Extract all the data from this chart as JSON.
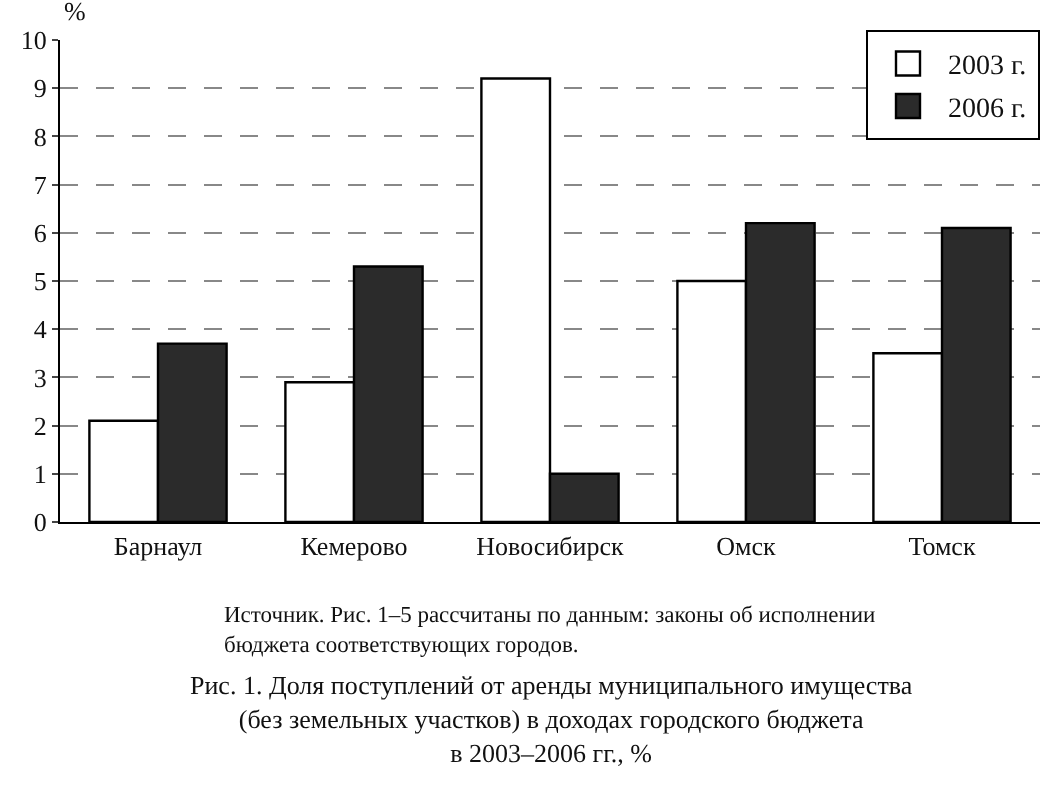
{
  "chart_data": {
    "type": "bar",
    "title": "Рис. 1. Доля поступлений от аренды муниципального имущества\n(без земельных участков) в доходах городского бюджета\nв 2003–2006 гг., %",
    "ylabel": "%",
    "categories": [
      "Барнаул",
      "Кемерово",
      "Новосибирск",
      "Омск",
      "Томск"
    ],
    "series": [
      {
        "name": "2003 г.",
        "color": "#ffffff",
        "values": [
          2.1,
          2.9,
          9.2,
          5.0,
          3.5
        ]
      },
      {
        "name": "2006 г.",
        "color": "#2b2b2b",
        "values": [
          3.7,
          5.3,
          1.0,
          6.2,
          6.1
        ]
      }
    ],
    "ylim": [
      0,
      10
    ],
    "yticks": [
      0,
      1,
      2,
      3,
      4,
      5,
      6,
      7,
      8,
      9,
      10
    ],
    "grid": "y",
    "legend": "top right",
    "annotations": [
      "Источник. Рис. 1–5 рассчитаны по данным: законы об исполнении\nбюджета соответствующих городов."
    ]
  }
}
